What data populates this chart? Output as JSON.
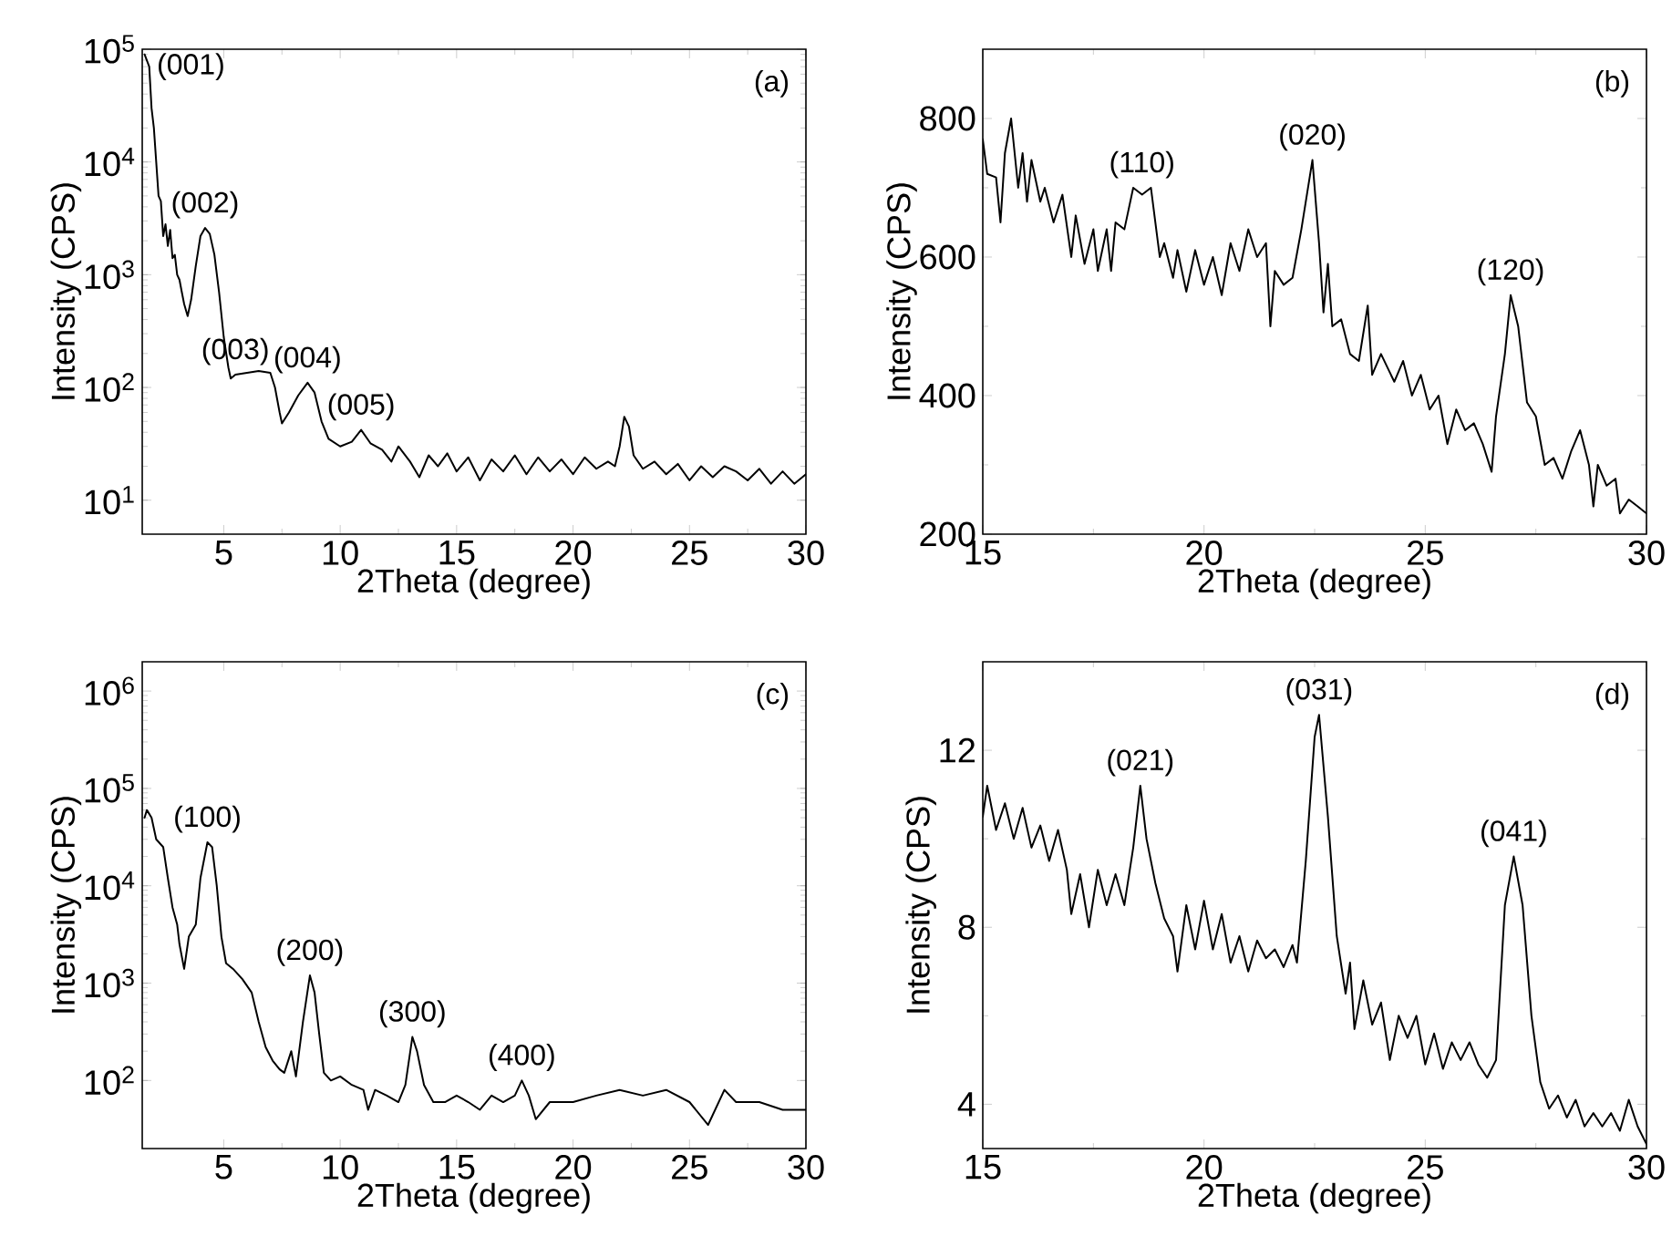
{
  "chart_data": [
    {
      "type": "line",
      "xlabel": "2Theta (degree)",
      "ylabel": "Intensity (CPS)",
      "log": true,
      "marker": "none",
      "xlim": [
        1.5,
        30
      ],
      "ylim": [
        5,
        100000
      ],
      "xticks": [
        5,
        10,
        15,
        20,
        25,
        30
      ],
      "yticks": [
        {
          "value": 10,
          "label": "10$^{1}$"
        },
        {
          "value": 100,
          "label": "10$^{2}$"
        },
        {
          "value": 1000,
          "label": "10$^{3}$"
        },
        {
          "value": 10000,
          "label": "10$^{4}$"
        },
        {
          "value": 100000,
          "label": "10$^{5}$"
        }
      ],
      "series": [
        {
          "color": "#000000",
          "x": [
            1.6,
            1.8,
            1.9,
            2.0,
            2.1,
            2.2,
            2.3,
            2.4,
            2.5,
            2.6,
            2.7,
            2.8,
            2.9,
            3.0,
            3.1,
            3.2,
            3.3,
            3.45,
            3.6,
            3.8,
            4.0,
            4.2,
            4.4,
            4.6,
            4.8,
            5.0,
            5.2,
            5.3,
            5.5,
            6.0,
            6.5,
            7.0,
            7.2,
            7.4,
            7.5,
            7.8,
            8.2,
            8.6,
            8.9,
            9.2,
            9.5,
            10,
            10.5,
            10.9,
            11.3,
            11.8,
            12.2,
            12.5,
            13,
            13.4,
            13.8,
            14.2,
            14.6,
            15,
            15.5,
            16,
            16.5,
            17,
            17.5,
            18,
            18.5,
            19,
            19.5,
            20,
            20.5,
            21,
            21.5,
            21.8,
            22.0,
            22.2,
            22.4,
            22.6,
            23,
            23.5,
            24,
            24.5,
            25,
            25.5,
            26,
            26.5,
            27,
            27.5,
            28,
            28.5,
            29,
            29.5,
            30
          ],
          "values": [
            90000,
            70000,
            30000,
            20000,
            10000,
            5000,
            4500,
            2200,
            2800,
            1800,
            2500,
            1400,
            1500,
            1000,
            900,
            700,
            550,
            430,
            600,
            1200,
            2200,
            2600,
            2300,
            1500,
            700,
            280,
            150,
            120,
            130,
            135,
            140,
            135,
            100,
            60,
            48,
            60,
            85,
            110,
            90,
            50,
            35,
            30,
            33,
            42,
            32,
            28,
            22,
            30,
            22,
            16,
            25,
            20,
            26,
            18,
            24,
            15,
            23,
            18,
            25,
            17,
            24,
            18,
            23,
            17,
            24,
            19,
            22,
            20,
            30,
            55,
            45,
            25,
            19,
            22,
            17,
            21,
            15,
            20,
            16,
            20,
            18,
            15,
            19,
            14,
            18,
            14,
            17
          ]
        }
      ],
      "annotations": [
        "(a)",
        {
          "text": "(001)",
          "x": 1.8,
          "y": 70000
        },
        {
          "text": "(002)",
          "x": 4.2,
          "y": 2600
        },
        {
          "text": "(003)",
          "x": 5.5,
          "y": 130
        },
        {
          "text": "(004)",
          "x": 8.6,
          "y": 110
        },
        {
          "text": "(005)",
          "x": 10.9,
          "y": 42
        }
      ]
    },
    {
      "type": "line",
      "xlabel": "2Theta (degree)",
      "ylabel": "Intensity (CPS)",
      "marker": "none",
      "xlim": [
        15,
        30
      ],
      "ylim": [
        200,
        900
      ],
      "xticks": [
        15,
        20,
        25,
        30
      ],
      "yticks": [
        200,
        400,
        600,
        800
      ],
      "series": [
        {
          "color": "#000000",
          "x": [
            15,
            15.1,
            15.3,
            15.4,
            15.5,
            15.64,
            15.8,
            15.9,
            16.0,
            16.1,
            16.3,
            16.4,
            16.6,
            16.8,
            17,
            17.1,
            17.3,
            17.5,
            17.6,
            17.8,
            17.9,
            18.0,
            18.2,
            18.4,
            18.6,
            18.8,
            19.0,
            19.1,
            19.3,
            19.4,
            19.6,
            19.8,
            20,
            20.2,
            20.4,
            20.6,
            20.8,
            21.0,
            21.2,
            21.4,
            21.5,
            21.6,
            21.8,
            22.0,
            22.2,
            22.45,
            22.6,
            22.7,
            22.8,
            22.9,
            23.1,
            23.3,
            23.5,
            23.7,
            23.8,
            24.0,
            24.3,
            24.5,
            24.7,
            24.9,
            25.1,
            25.3,
            25.5,
            25.7,
            25.9,
            26.1,
            26.3,
            26.5,
            26.6,
            26.8,
            26.93,
            27.1,
            27.3,
            27.5,
            27.7,
            27.9,
            28.1,
            28.3,
            28.5,
            28.7,
            28.8,
            28.9,
            29.1,
            29.3,
            29.4,
            29.6,
            29.8,
            30
          ],
          "values": [
            770,
            720,
            715,
            650,
            750,
            800,
            700,
            750,
            680,
            740,
            680,
            700,
            650,
            690,
            600,
            660,
            590,
            640,
            580,
            640,
            580,
            650,
            640,
            700,
            690,
            700,
            600,
            620,
            570,
            610,
            550,
            610,
            560,
            600,
            545,
            620,
            580,
            640,
            600,
            620,
            500,
            580,
            560,
            570,
            640,
            740,
            620,
            520,
            590,
            500,
            510,
            460,
            450,
            530,
            430,
            460,
            420,
            450,
            400,
            430,
            380,
            400,
            330,
            380,
            350,
            360,
            330,
            290,
            370,
            460,
            545,
            500,
            390,
            370,
            300,
            310,
            280,
            320,
            350,
            300,
            240,
            300,
            270,
            280,
            230,
            250,
            240,
            230
          ]
        }
      ],
      "annotations": [
        "(b)",
        {
          "text": "(110)",
          "x": 18.6,
          "y": 700
        },
        {
          "text": "(020)",
          "x": 22.45,
          "y": 740
        },
        {
          "text": "(120)",
          "x": 26.93,
          "y": 545
        }
      ]
    },
    {
      "type": "line",
      "xlabel": "2Theta (degree)",
      "ylabel": "Intensity (CPS)",
      "log": true,
      "marker": "none",
      "xlim": [
        1.5,
        30
      ],
      "ylim": [
        20,
        2000000
      ],
      "xticks": [
        5,
        10,
        15,
        20,
        25,
        30
      ],
      "yticks": [
        {
          "value": 100,
          "label": "10$^{2}$"
        },
        {
          "value": 1000,
          "label": "10$^{3}$"
        },
        {
          "value": 10000,
          "label": "10$^{4}$"
        },
        {
          "value": 100000,
          "label": "10$^{5}$"
        },
        {
          "value": 1000000,
          "label": "10$^{6}$"
        }
      ],
      "series": [
        {
          "color": "#000000",
          "x": [
            1.6,
            1.7,
            1.9,
            2.1,
            2.4,
            2.6,
            2.8,
            3.0,
            3.1,
            3.3,
            3.5,
            3.8,
            4.0,
            4.3,
            4.5,
            4.7,
            4.9,
            5.1,
            5.4,
            5.8,
            6.2,
            6.5,
            6.8,
            7.1,
            7.4,
            7.6,
            7.9,
            8.1,
            8.4,
            8.7,
            8.9,
            9.1,
            9.3,
            9.6,
            10,
            10.5,
            11,
            11.2,
            11.5,
            12,
            12.5,
            12.8,
            13.1,
            13.3,
            13.6,
            14,
            14.5,
            15,
            15.5,
            16,
            16.5,
            17,
            17.5,
            17.8,
            18.1,
            18.4,
            19,
            20,
            21,
            22,
            23,
            24,
            25,
            25.8,
            26.5,
            27,
            28,
            29,
            30
          ],
          "values": [
            50000,
            60000,
            50000,
            30000,
            25000,
            12000,
            6000,
            4000,
            2500,
            1400,
            3000,
            4000,
            12000,
            28000,
            25000,
            10000,
            3000,
            1600,
            1400,
            1100,
            800,
            400,
            220,
            160,
            130,
            120,
            200,
            110,
            400,
            1200,
            800,
            300,
            120,
            100,
            110,
            90,
            80,
            50,
            80,
            70,
            60,
            90,
            280,
            200,
            90,
            60,
            60,
            70,
            60,
            50,
            70,
            60,
            70,
            100,
            70,
            40,
            60,
            60,
            70,
            80,
            70,
            80,
            60,
            35,
            80,
            60,
            60,
            50,
            50
          ]
        }
      ],
      "annotations": [
        "(c)",
        {
          "text": "(100)",
          "x": 4.3,
          "y": 28000
        },
        {
          "text": "(200)",
          "x": 8.7,
          "y": 1200
        },
        {
          "text": "(300)",
          "x": 13.1,
          "y": 280
        },
        {
          "text": "(400)",
          "x": 17.8,
          "y": 100
        }
      ]
    },
    {
      "type": "line",
      "xlabel": "2Theta (degree)",
      "ylabel": "Intensity (CPS)",
      "marker": "none",
      "xlim": [
        15,
        30
      ],
      "ylim": [
        3,
        14
      ],
      "xticks": [
        15,
        20,
        25,
        30
      ],
      "yticks": [
        4,
        8,
        12
      ],
      "series": [
        {
          "color": "#000000",
          "x": [
            15,
            15.1,
            15.3,
            15.5,
            15.7,
            15.9,
            16.1,
            16.3,
            16.5,
            16.7,
            16.9,
            17.0,
            17.2,
            17.4,
            17.6,
            17.8,
            18.0,
            18.2,
            18.4,
            18.56,
            18.7,
            18.9,
            19.1,
            19.3,
            19.4,
            19.6,
            19.8,
            20.0,
            20.2,
            20.4,
            20.6,
            20.8,
            21.0,
            21.2,
            21.4,
            21.6,
            21.8,
            22.0,
            22.1,
            22.3,
            22.5,
            22.6,
            22.8,
            23.0,
            23.2,
            23.3,
            23.4,
            23.6,
            23.8,
            24.0,
            24.2,
            24.4,
            24.6,
            24.8,
            25.0,
            25.2,
            25.4,
            25.6,
            25.8,
            26.0,
            26.2,
            26.4,
            26.6,
            26.8,
            27.0,
            27.2,
            27.4,
            27.6,
            27.8,
            28.0,
            28.2,
            28.4,
            28.6,
            28.8,
            29.0,
            29.2,
            29.4,
            29.6,
            29.8,
            30.0
          ],
          "values": [
            10.5,
            11.2,
            10.2,
            10.8,
            10.0,
            10.7,
            9.8,
            10.3,
            9.5,
            10.2,
            9.3,
            8.3,
            9.2,
            8.0,
            9.3,
            8.5,
            9.2,
            8.5,
            9.8,
            11.2,
            10.0,
            9.0,
            8.2,
            7.8,
            7.0,
            8.5,
            7.5,
            8.6,
            7.5,
            8.3,
            7.2,
            7.8,
            7.0,
            7.7,
            7.3,
            7.5,
            7.1,
            7.6,
            7.2,
            9.5,
            12.3,
            12.8,
            10.5,
            7.8,
            6.5,
            7.2,
            5.7,
            6.8,
            5.8,
            6.3,
            5.0,
            6.0,
            5.5,
            6.0,
            4.9,
            5.6,
            4.8,
            5.4,
            5.0,
            5.4,
            4.9,
            4.6,
            5.0,
            8.5,
            9.6,
            8.5,
            6.0,
            4.5,
            3.9,
            4.2,
            3.7,
            4.1,
            3.5,
            3.8,
            3.5,
            3.8,
            3.4,
            4.1,
            3.5,
            3.1
          ]
        }
      ],
      "annotations": [
        "(d)",
        {
          "text": "(021)",
          "x": 18.56,
          "y": 11.2
        },
        {
          "text": "(031)",
          "x": 22.6,
          "y": 12.8
        },
        {
          "text": "(041)",
          "x": 27.0,
          "y": 9.6
        }
      ]
    }
  ]
}
